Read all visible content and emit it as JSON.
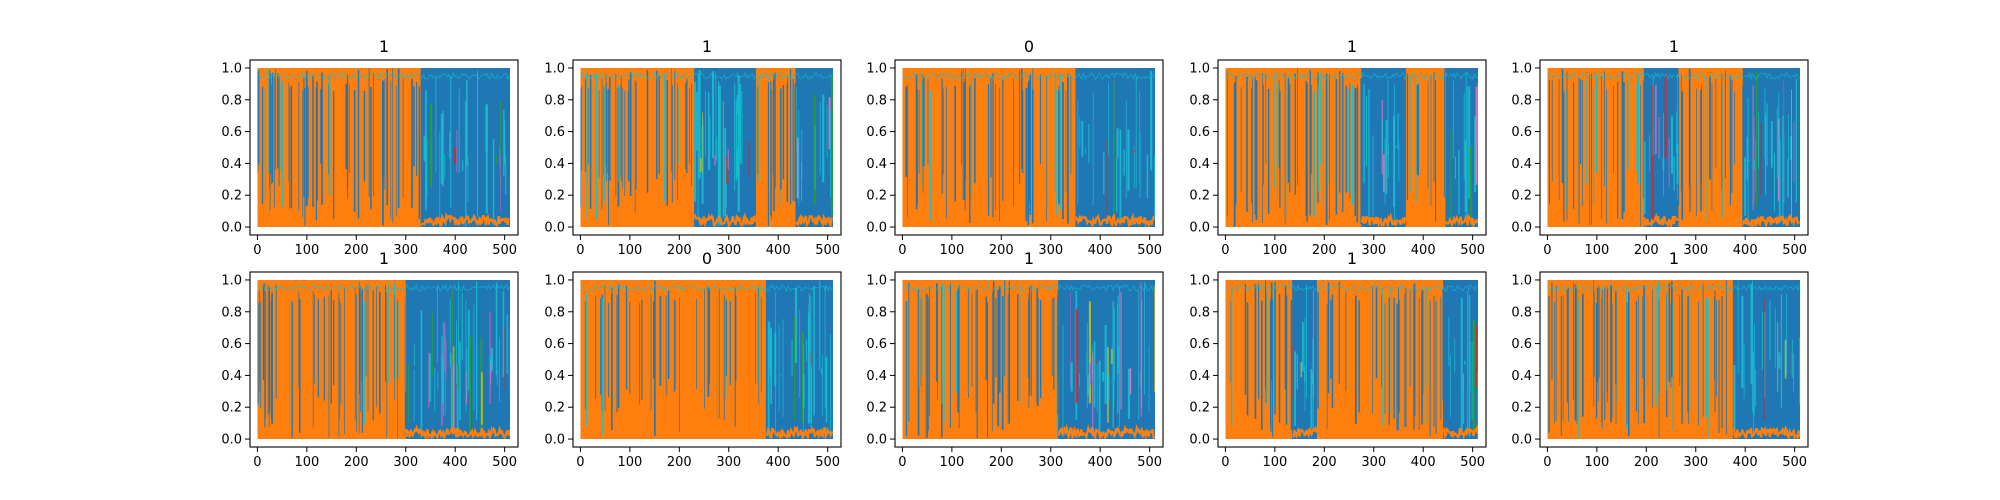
{
  "chart_data": {
    "type": "line",
    "layout_grid": {
      "rows": 2,
      "cols": 5
    },
    "x_ticks": [
      0,
      100,
      200,
      300,
      400,
      500
    ],
    "y_ticks": [
      0.0,
      0.2,
      0.4,
      0.6,
      0.8,
      1.0
    ],
    "y_tick_labels": [
      "0.0",
      "0.2",
      "0.4",
      "0.6",
      "0.8",
      "1.0"
    ],
    "xlim": [
      -15,
      527
    ],
    "ylim": [
      -0.05,
      1.05
    ],
    "x_length": 512,
    "grid": false,
    "legend": false,
    "colors": {
      "series_primary_a": "#1f77b4",
      "series_primary_b": "#ff7f0e",
      "series_minor": [
        "#17becf",
        "#2ca02c",
        "#bcbd22",
        "#9467bd",
        "#d62728",
        "#e377c2"
      ]
    },
    "panels": [
      {
        "title": "1",
        "orange_segments": [
          [
            0,
            330
          ]
        ]
      },
      {
        "title": "1",
        "orange_segments": [
          [
            0,
            230
          ],
          [
            355,
            435
          ]
        ]
      },
      {
        "title": "0",
        "orange_segments": [
          [
            0,
            350
          ]
        ]
      },
      {
        "title": "1",
        "orange_segments": [
          [
            0,
            275
          ],
          [
            365,
            445
          ]
        ]
      },
      {
        "title": "1",
        "orange_segments": [
          [
            0,
            195
          ],
          [
            265,
            395
          ]
        ]
      },
      {
        "title": "1",
        "orange_segments": [
          [
            0,
            300
          ]
        ]
      },
      {
        "title": "0",
        "orange_segments": [
          [
            0,
            375
          ]
        ]
      },
      {
        "title": "1",
        "orange_segments": [
          [
            0,
            315
          ]
        ]
      },
      {
        "title": "1",
        "orange_segments": [
          [
            0,
            135
          ],
          [
            185,
            440
          ]
        ]
      },
      {
        "title": "1",
        "orange_segments": [
          [
            0,
            375
          ]
        ]
      }
    ]
  }
}
